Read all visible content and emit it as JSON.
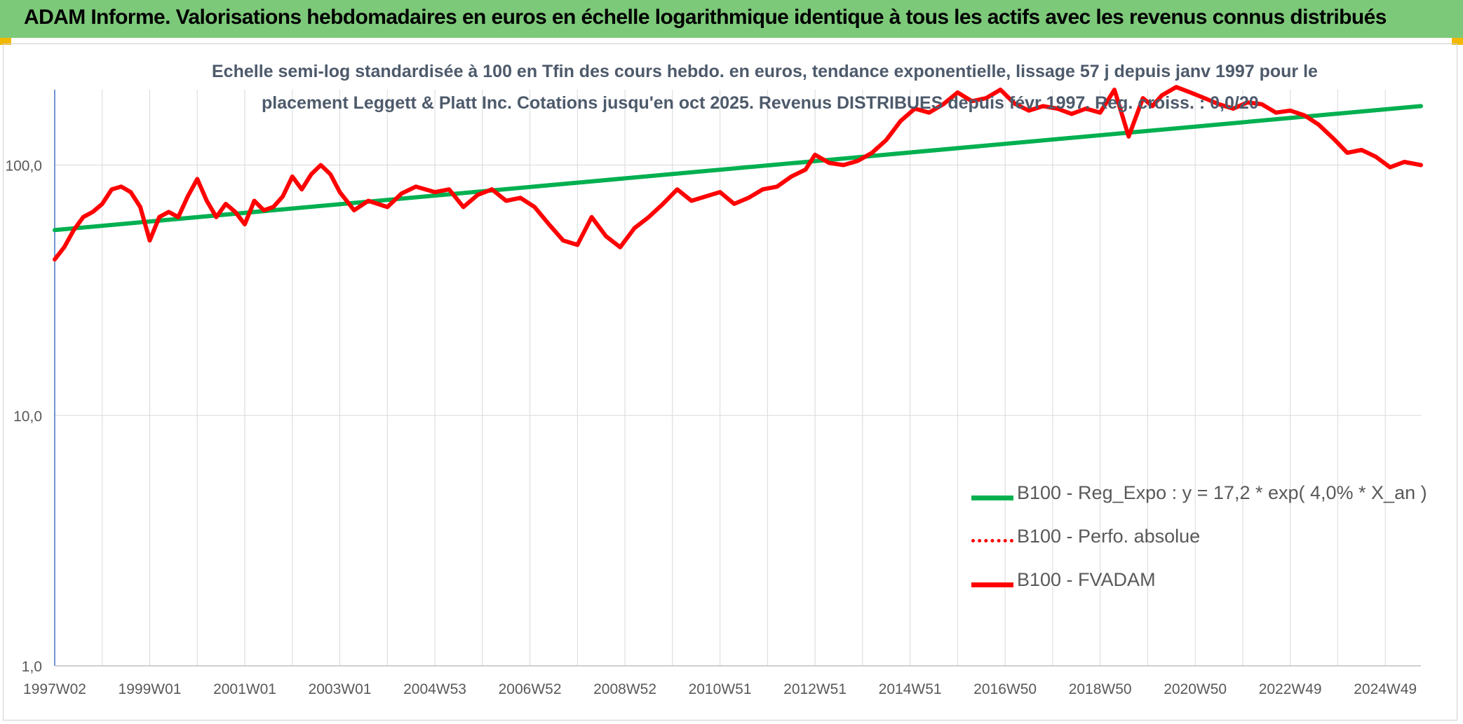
{
  "header": {
    "title": "ADAM Informe. Valorisations hebdomadaires en euros en échelle logarithmique identique à tous les actifs avec les revenus connus distribués"
  },
  "chart_data": {
    "type": "line",
    "title_line1": "Echelle semi-log standardisée à 100 en Tfin des cours hebdo. en euros, tendance exponentielle, lissage 57 j depuis janv 1997 pour le",
    "title_line2": "placement Leggett & Platt Inc. Cotations jusqu'en oct 2025. Revenus DISTRIBUES depuis févr 1997. Reg. croiss. : 0,0/20",
    "y_scale": "log",
    "ylim": [
      1,
      200
    ],
    "y_ticks": [
      {
        "value": 1,
        "label": "1,0"
      },
      {
        "value": 10,
        "label": "10,0"
      },
      {
        "value": 100,
        "label": "100,0"
      }
    ],
    "x_ticks": [
      "1997W02",
      "1999W01",
      "2001W01",
      "2003W01",
      "2004W53",
      "2006W52",
      "2008W52",
      "2010W51",
      "2012W51",
      "2014W51",
      "2016W50",
      "2018W50",
      "2020W50",
      "2022W49",
      "2024W49"
    ],
    "x_tick_years": [
      1997.0,
      1999.0,
      2001.0,
      2003.0,
      2005.0,
      2007.0,
      2009.0,
      2011.0,
      2013.0,
      2015.0,
      2017.0,
      2019.0,
      2021.0,
      2023.0,
      2025.0
    ],
    "xlim": [
      1997.0,
      2025.75
    ],
    "grid": true,
    "legend_position": "bottom-right",
    "series": [
      {
        "name": "B100 - Reg_Expo : y = 17,2 * exp( 4,0% *  X_an )",
        "color": "#00b050",
        "style": "solid",
        "x": [
          1997.0,
          2025.75
        ],
        "y": [
          55,
          172
        ]
      },
      {
        "name": "B100 - Perfo. absolue",
        "color": "#ff0000",
        "style": "dotted",
        "x": [],
        "y": []
      },
      {
        "name": "B100 - FVADAM",
        "color": "#ff0000",
        "style": "solid",
        "x": [
          1997.0,
          1997.2,
          1997.4,
          1997.6,
          1997.8,
          1998.0,
          1998.2,
          1998.4,
          1998.6,
          1998.8,
          1999.0,
          1999.2,
          1999.4,
          1999.6,
          1999.8,
          2000.0,
          2000.2,
          2000.4,
          2000.6,
          2000.8,
          2001.0,
          2001.2,
          2001.4,
          2001.6,
          2001.8,
          2002.0,
          2002.2,
          2002.4,
          2002.6,
          2002.8,
          2003.0,
          2003.3,
          2003.6,
          2004.0,
          2004.3,
          2004.6,
          2005.0,
          2005.3,
          2005.6,
          2005.9,
          2006.2,
          2006.5,
          2006.8,
          2007.1,
          2007.4,
          2007.7,
          2008.0,
          2008.3,
          2008.6,
          2008.9,
          2009.2,
          2009.5,
          2009.8,
          2010.1,
          2010.4,
          2010.7,
          2011.0,
          2011.3,
          2011.6,
          2011.9,
          2012.2,
          2012.5,
          2012.8,
          2013.0,
          2013.3,
          2013.6,
          2013.9,
          2014.2,
          2014.5,
          2014.8,
          2015.1,
          2015.4,
          2015.7,
          2016.0,
          2016.3,
          2016.6,
          2016.9,
          2017.2,
          2017.5,
          2017.8,
          2018.1,
          2018.4,
          2018.7,
          2019.0,
          2019.3,
          2019.6,
          2019.9,
          2020.1,
          2020.3,
          2020.6,
          2020.9,
          2021.2,
          2021.5,
          2021.8,
          2022.1,
          2022.4,
          2022.7,
          2023.0,
          2023.3,
          2023.6,
          2023.9,
          2024.2,
          2024.5,
          2024.8,
          2025.1,
          2025.4,
          2025.75
        ],
        "y": [
          42,
          47,
          55,
          62,
          65,
          70,
          80,
          82,
          78,
          68,
          50,
          62,
          65,
          62,
          75,
          88,
          72,
          62,
          70,
          65,
          58,
          72,
          66,
          68,
          75,
          90,
          80,
          92,
          100,
          92,
          78,
          66,
          72,
          68,
          77,
          82,
          78,
          80,
          68,
          76,
          80,
          72,
          74,
          68,
          58,
          50,
          48,
          62,
          52,
          47,
          56,
          62,
          70,
          80,
          72,
          75,
          78,
          70,
          74,
          80,
          82,
          90,
          96,
          110,
          102,
          100,
          104,
          112,
          126,
          150,
          168,
          162,
          175,
          195,
          180,
          185,
          200,
          176,
          165,
          172,
          168,
          160,
          168,
          162,
          200,
          130,
          185,
          172,
          190,
          205,
          195,
          185,
          175,
          168,
          178,
          175,
          162,
          165,
          158,
          145,
          128,
          112,
          115,
          108,
          98,
          103,
          100
        ]
      }
    ]
  }
}
